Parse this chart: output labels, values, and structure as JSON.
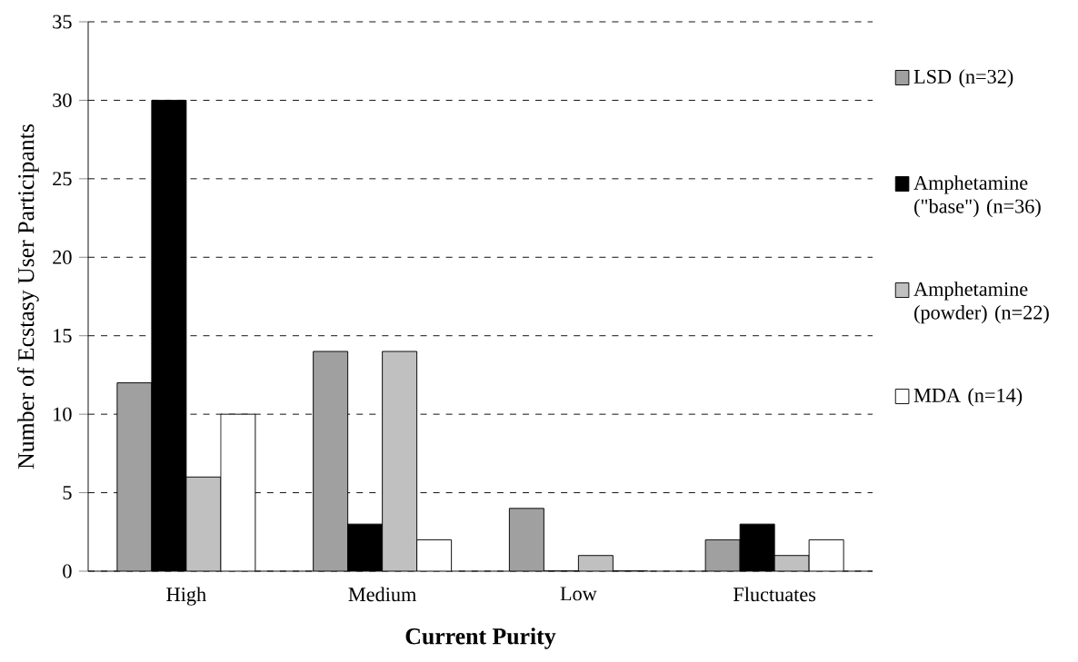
{
  "chart_data": {
    "type": "bar",
    "xlabel": "Current Purity",
    "ylabel": "Number of Ecstasy User Participants",
    "categories": [
      "High",
      "Medium",
      "Low",
      "Fluctuates"
    ],
    "series": [
      {
        "name": "LSD (n=32)",
        "color": "#a0a0a0",
        "values": [
          12,
          14,
          4,
          2
        ]
      },
      {
        "name": "Amphetamine (\"base\") (n=36)",
        "color": "#000000",
        "values": [
          30,
          3,
          0,
          3
        ]
      },
      {
        "name": "Amphetamine (powder) (n=22)",
        "color": "#c0c0c0",
        "values": [
          6,
          14,
          1,
          1
        ]
      },
      {
        "name": "MDA (n=14)",
        "color": "#ffffff",
        "values": [
          10,
          2,
          0,
          2
        ]
      }
    ],
    "ylim": [
      0,
      35
    ],
    "yticks": [
      0,
      5,
      10,
      15,
      20,
      25,
      30,
      35
    ],
    "grid": "y",
    "legend": "right"
  }
}
